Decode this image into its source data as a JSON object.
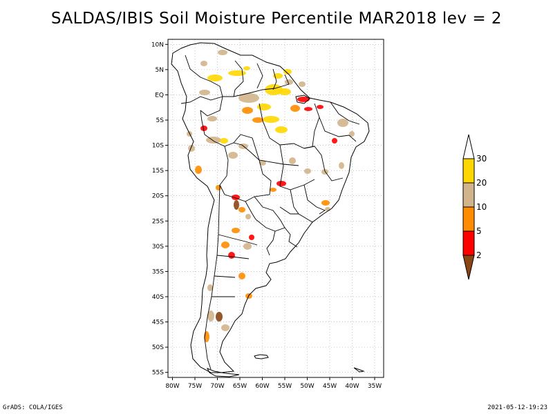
{
  "title": "SALDAS/IBIS Soil Moisture Percentile MAR2018 lev = 2",
  "map": {
    "lat_labels": [
      "10N",
      "5N",
      "EQ",
      "5S",
      "10S",
      "15S",
      "20S",
      "25S",
      "30S",
      "35S",
      "40S",
      "45S",
      "50S",
      "55S"
    ],
    "lon_labels": [
      "80W",
      "75W",
      "70W",
      "65W",
      "60W",
      "55W",
      "50W",
      "45W",
      "40W",
      "35W"
    ],
    "lat_range": [
      -56,
      11
    ],
    "lon_range": [
      -81,
      -33
    ]
  },
  "legend": {
    "labels": [
      "30",
      "20",
      "10",
      "5",
      "2"
    ],
    "colors": {
      "above_30": "#ffffff",
      "20_30": "#ffd700",
      "10_20": "#d2b48c",
      "5_10": "#ff8c00",
      "2_5": "#ff0000",
      "below_2": "#8b4513"
    }
  },
  "footer": {
    "left": "GrADS: COLA/IGES",
    "right": "2021-05-12-19:23"
  }
}
